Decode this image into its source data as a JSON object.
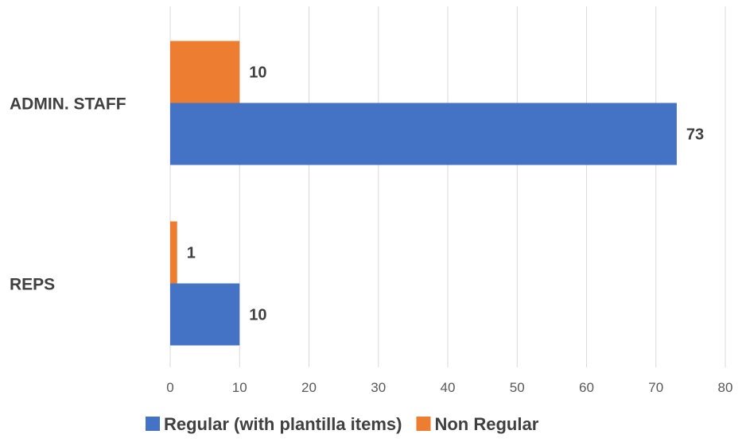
{
  "chart_data": {
    "type": "bar",
    "orientation": "horizontal",
    "categories": [
      "ADMIN. STAFF",
      "REPS"
    ],
    "series": [
      {
        "name": "Non Regular",
        "values": [
          10,
          1
        ],
        "color": "#ED7D31"
      },
      {
        "name": "Regular (with plantilla items)",
        "values": [
          73,
          10
        ],
        "color": "#4472C4"
      }
    ],
    "xlim": [
      0,
      80
    ],
    "xticks": [
      0,
      10,
      20,
      30,
      40,
      50,
      60,
      70,
      80
    ],
    "grid": true,
    "legend_position": "bottom",
    "legend": [
      {
        "name": "Regular (with plantilla items)",
        "color": "#4472C4"
      },
      {
        "name": "Non Regular",
        "color": "#ED7D31"
      }
    ],
    "data_labels": true
  }
}
